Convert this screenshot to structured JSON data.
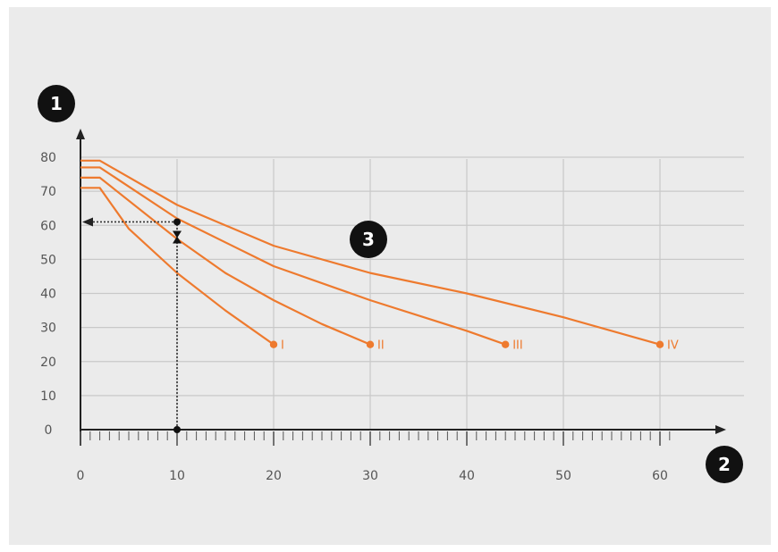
{
  "chart_data": {
    "type": "line",
    "xlabel": "",
    "ylabel": "",
    "xlim": [
      0,
      60
    ],
    "ylim": [
      0,
      80
    ],
    "x_ticks": [
      "0",
      "10",
      "20",
      "30",
      "40",
      "50",
      "60"
    ],
    "y_ticks": [
      "0",
      "10",
      "20",
      "30",
      "40",
      "50",
      "60",
      "70",
      "80"
    ],
    "grid": true,
    "series": [
      {
        "name": "I",
        "x": [
          0,
          2,
          5,
          10,
          15,
          20
        ],
        "y": [
          71,
          71,
          59,
          46,
          35,
          25
        ]
      },
      {
        "name": "II",
        "x": [
          0,
          2,
          10,
          15,
          20,
          25,
          30
        ],
        "y": [
          74,
          74,
          56,
          46,
          38,
          31,
          25
        ]
      },
      {
        "name": "III",
        "x": [
          0,
          2,
          10,
          20,
          30,
          40,
          44
        ],
        "y": [
          77,
          77,
          62,
          48,
          38,
          29,
          25
        ]
      },
      {
        "name": "IV",
        "x": [
          0,
          2,
          10,
          20,
          30,
          40,
          50,
          60
        ],
        "y": [
          79,
          79,
          66,
          54,
          46,
          40,
          33,
          25
        ]
      }
    ],
    "annotations": [
      {
        "label": "1",
        "target": "y-axis"
      },
      {
        "label": "2",
        "target": "x-axis"
      },
      {
        "label": "3",
        "target": "reading at x=10, y=61"
      }
    ],
    "reading": {
      "x": 10,
      "y": 61
    }
  },
  "colors": {
    "curve": "#ee7a2e",
    "grid": "#c9c9c9",
    "axis": "#222222",
    "background": "#ebebeb",
    "badge": "#111111"
  }
}
